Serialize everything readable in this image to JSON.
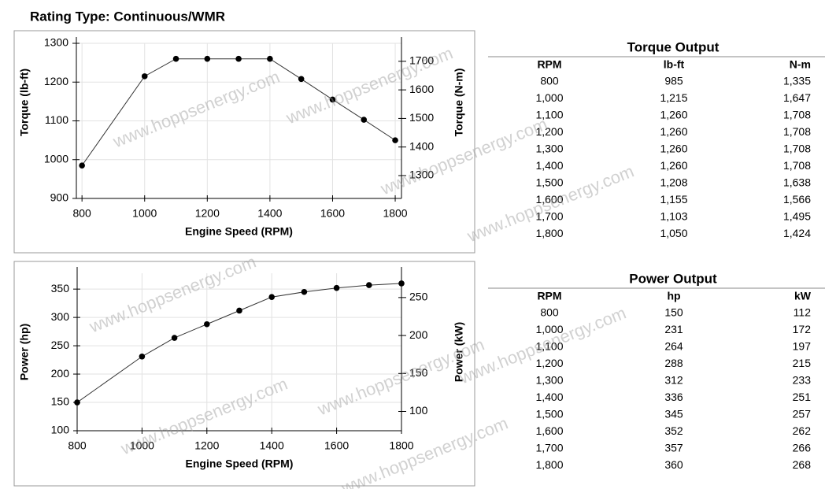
{
  "heading": "Rating Type: Continuous/WMR",
  "watermark": "www.hoppsenergy.com",
  "chart_data": [
    {
      "type": "line",
      "x": [
        800,
        1000,
        1100,
        1200,
        1300,
        1400,
        1500,
        1600,
        1700,
        1800
      ],
      "xlim": [
        782,
        1820
      ],
      "xticks": [
        800,
        1000,
        1200,
        1400,
        1600,
        1800
      ],
      "ylim": [
        900,
        1300
      ],
      "yticks": [
        900,
        1000,
        1100,
        1200,
        1300
      ],
      "y2lim": [
        1220,
        1763
      ],
      "y2ticks": [
        1300,
        1400,
        1500,
        1600,
        1700
      ],
      "x_label": "Engine Speed (RPM)",
      "y_label": "Torque (lb-ft)",
      "y2_label": "Torque (N-m)",
      "grid": true,
      "series": [
        {
          "color": "#333333",
          "values": [
            985,
            1215,
            1260,
            1260,
            1260,
            1260,
            1208,
            1155,
            1103,
            1050
          ]
        }
      ]
    },
    {
      "type": "line",
      "x": [
        800,
        1000,
        1100,
        1200,
        1300,
        1400,
        1500,
        1600,
        1700,
        1800
      ],
      "xlim": [
        800,
        1800
      ],
      "xticks": [
        800,
        1000,
        1200,
        1400,
        1600,
        1800
      ],
      "ylim": [
        100,
        378
      ],
      "yticks": [
        100,
        150,
        200,
        250,
        300,
        350
      ],
      "y2lim": [
        74.6,
        282
      ],
      "y2ticks": [
        100,
        150,
        200,
        250
      ],
      "x_label": "Engine Speed (RPM)",
      "y_label": "Power (hp)",
      "y2_label": "Power (kW)",
      "grid": true,
      "series": [
        {
          "color": "#333333",
          "values": [
            150,
            231,
            264,
            288,
            312,
            336,
            345,
            352,
            357,
            360
          ]
        }
      ]
    }
  ],
  "tables": [
    {
      "title": "Torque Output",
      "columns": [
        "RPM",
        "lb-ft",
        "N-m"
      ],
      "rows": [
        [
          "800",
          "985",
          "1,335"
        ],
        [
          "1,000",
          "1,215",
          "1,647"
        ],
        [
          "1,100",
          "1,260",
          "1,708"
        ],
        [
          "1,200",
          "1,260",
          "1,708"
        ],
        [
          "1,300",
          "1,260",
          "1,708"
        ],
        [
          "1,400",
          "1,260",
          "1,708"
        ],
        [
          "1,500",
          "1,208",
          "1,638"
        ],
        [
          "1,600",
          "1,155",
          "1,566"
        ],
        [
          "1,700",
          "1,103",
          "1,495"
        ],
        [
          "1,800",
          "1,050",
          "1,424"
        ]
      ]
    },
    {
      "title": "Power Output",
      "columns": [
        "RPM",
        "hp",
        "kW"
      ],
      "rows": [
        [
          "800",
          "150",
          "112"
        ],
        [
          "1,000",
          "231",
          "172"
        ],
        [
          "1,100",
          "264",
          "197"
        ],
        [
          "1,200",
          "288",
          "215"
        ],
        [
          "1,300",
          "312",
          "233"
        ],
        [
          "1,400",
          "336",
          "251"
        ],
        [
          "1,500",
          "345",
          "257"
        ],
        [
          "1,600",
          "352",
          "262"
        ],
        [
          "1,700",
          "357",
          "266"
        ],
        [
          "1,800",
          "360",
          "268"
        ]
      ]
    }
  ]
}
